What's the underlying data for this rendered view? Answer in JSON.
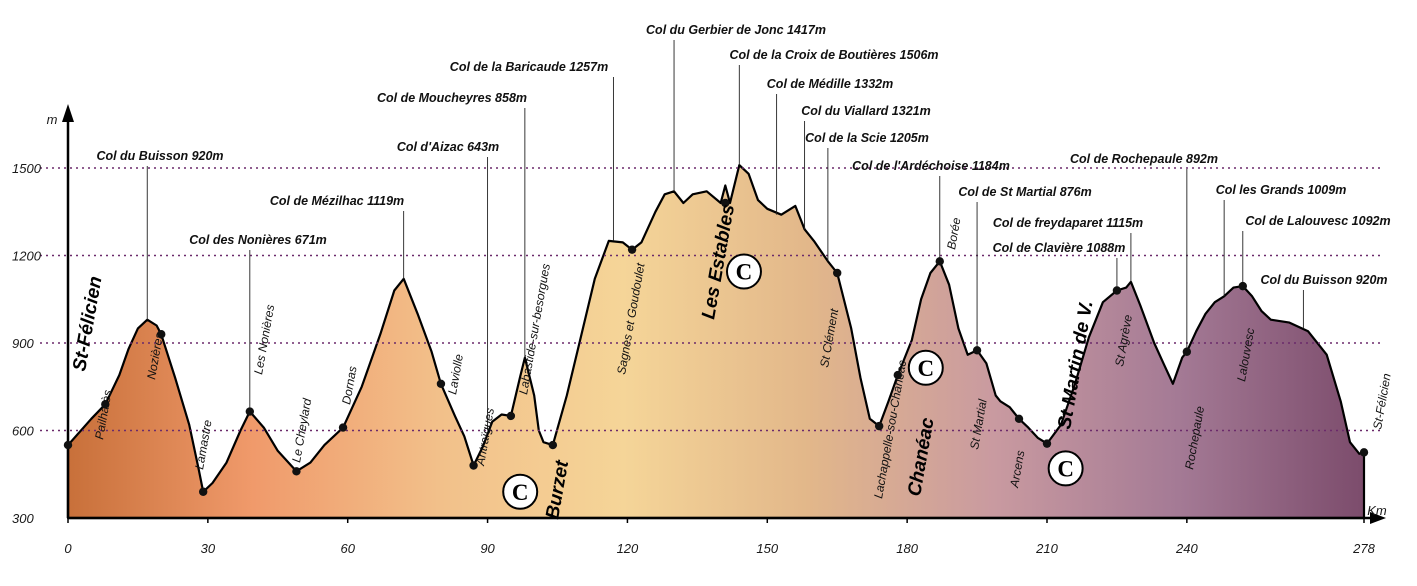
{
  "chart_data": {
    "type": "area",
    "title": "",
    "ylabel": "m",
    "xlabel": "Km",
    "xlim": [
      0,
      278
    ],
    "ylim": [
      300,
      1650
    ],
    "x_ticks": [
      "0",
      "30",
      "60",
      "90",
      "120",
      "150",
      "180",
      "210",
      "240",
      "278"
    ],
    "y_ticks": [
      "300",
      "600",
      "900",
      "1200",
      "1500"
    ],
    "dotted_gridlines": [
      600,
      900,
      1200,
      1500
    ],
    "colors": {
      "gradient": [
        "#c8703a",
        "#f09a6b",
        "#f2c08a",
        "#f5d598",
        "#e2b78a",
        "#c99aa0",
        "#a47a95",
        "#7c4c6c"
      ],
      "gridline": "#6b2a6b",
      "axis": "#000000"
    },
    "profile": [
      [
        0,
        550
      ],
      [
        5,
        640
      ],
      [
        8,
        690
      ],
      [
        11,
        790
      ],
      [
        13,
        880
      ],
      [
        15,
        950
      ],
      [
        17,
        980
      ],
      [
        19,
        960
      ],
      [
        20,
        930
      ],
      [
        23,
        780
      ],
      [
        26,
        620
      ],
      [
        28,
        470
      ],
      [
        29,
        390
      ],
      [
        31,
        420
      ],
      [
        34,
        490
      ],
      [
        37,
        600
      ],
      [
        39,
        665
      ],
      [
        42,
        610
      ],
      [
        45,
        530
      ],
      [
        49,
        460
      ],
      [
        52,
        490
      ],
      [
        55,
        550
      ],
      [
        59,
        610
      ],
      [
        63,
        750
      ],
      [
        67,
        930
      ],
      [
        70,
        1080
      ],
      [
        72,
        1120
      ],
      [
        75,
        1000
      ],
      [
        78,
        870
      ],
      [
        80,
        760
      ],
      [
        83,
        650
      ],
      [
        85,
        580
      ],
      [
        87,
        480
      ],
      [
        89,
        545
      ],
      [
        91,
        630
      ],
      [
        93,
        655
      ],
      [
        95,
        650
      ],
      [
        97,
        785
      ],
      [
        98,
        850
      ],
      [
        100,
        720
      ],
      [
        101,
        600
      ],
      [
        102,
        560
      ],
      [
        104,
        550
      ],
      [
        107,
        720
      ],
      [
        110,
        920
      ],
      [
        113,
        1120
      ],
      [
        116,
        1250
      ],
      [
        119,
        1245
      ],
      [
        121,
        1220
      ],
      [
        123,
        1245
      ],
      [
        126,
        1350
      ],
      [
        128,
        1410
      ],
      [
        130,
        1420
      ],
      [
        132,
        1380
      ],
      [
        134,
        1410
      ],
      [
        137,
        1420
      ],
      [
        140,
        1380
      ],
      [
        141,
        1440
      ],
      [
        142,
        1380
      ],
      [
        144,
        1510
      ],
      [
        146,
        1480
      ],
      [
        148,
        1390
      ],
      [
        150,
        1360
      ],
      [
        153,
        1340
      ],
      [
        156,
        1370
      ],
      [
        158,
        1290
      ],
      [
        160,
        1250
      ],
      [
        163,
        1180
      ],
      [
        165,
        1140
      ],
      [
        168,
        950
      ],
      [
        170,
        780
      ],
      [
        172,
        640
      ],
      [
        174,
        615
      ],
      [
        176,
        700
      ],
      [
        178,
        790
      ],
      [
        181,
        910
      ],
      [
        183,
        1050
      ],
      [
        185,
        1140
      ],
      [
        187,
        1180
      ],
      [
        189,
        1100
      ],
      [
        191,
        950
      ],
      [
        193,
        860
      ],
      [
        195,
        875
      ],
      [
        197,
        830
      ],
      [
        199,
        720
      ],
      [
        200,
        700
      ],
      [
        202,
        680
      ],
      [
        204,
        640
      ],
      [
        206,
        610
      ],
      [
        208,
        575
      ],
      [
        210,
        555
      ],
      [
        213,
        620
      ],
      [
        216,
        760
      ],
      [
        219,
        920
      ],
      [
        222,
        1040
      ],
      [
        225,
        1080
      ],
      [
        227,
        1090
      ],
      [
        228,
        1110
      ],
      [
        230,
        1030
      ],
      [
        233,
        900
      ],
      [
        235,
        830
      ],
      [
        237,
        760
      ],
      [
        239,
        850
      ],
      [
        240,
        870
      ],
      [
        242,
        940
      ],
      [
        244,
        1000
      ],
      [
        246,
        1040
      ],
      [
        248,
        1060
      ],
      [
        250,
        1090
      ],
      [
        252,
        1095
      ],
      [
        254,
        1060
      ],
      [
        256,
        1010
      ],
      [
        258,
        980
      ],
      [
        262,
        970
      ],
      [
        266,
        940
      ],
      [
        270,
        860
      ],
      [
        273,
        700
      ],
      [
        275,
        560
      ],
      [
        277,
        520
      ],
      [
        278,
        525
      ]
    ],
    "cols": [
      {
        "label": "Col du Buisson 920m",
        "x": 17,
        "y": 980
      },
      {
        "label": "Col des Nonières 671m",
        "x": 39,
        "y": 665
      },
      {
        "label": "Col de Mézilhac 1119m",
        "x": 72,
        "y": 1120
      },
      {
        "label": "Col d'Aizac 643m",
        "x": 90,
        "y": 600
      },
      {
        "label": "Col de Moucheyres 858m",
        "x": 98,
        "y": 850
      },
      {
        "label": "Col de la Baricaude 1257m",
        "x": 117,
        "y": 1250
      },
      {
        "label": "Col du Gerbier de Jonc 1417m",
        "x": 130,
        "y": 1420
      },
      {
        "label": "Col de la Croix de Boutières 1506m",
        "x": 144,
        "y": 1510
      },
      {
        "label": "Col de Médille 1332m",
        "x": 152,
        "y": 1340
      },
      {
        "label": "Col du Viallard 1321m",
        "x": 158,
        "y": 1290
      },
      {
        "label": "Col de la Scie 1205m",
        "x": 163,
        "y": 1180
      },
      {
        "label": "Col de l'Ardéchoise 1184m",
        "x": 187,
        "y": 1180
      },
      {
        "label": "Col de St Martial 876m",
        "x": 195,
        "y": 875
      },
      {
        "label": "Col de freydaparet 1115m",
        "x": 228,
        "y": 1110
      },
      {
        "label": "Col de Clavière 1088m",
        "x": 225,
        "y": 1080
      },
      {
        "label": "Col de Rochepaule 892m",
        "x": 240,
        "y": 870
      },
      {
        "label": "Col les Grands 1009m",
        "x": 248,
        "y": 1060
      },
      {
        "label": "Col de Lalouvesc 1092m",
        "x": 252,
        "y": 1095
      },
      {
        "label": "Col du Buisson 920m",
        "x": 265,
        "y": 950
      }
    ],
    "towns": [
      {
        "label": "St-Félicien",
        "x": 0,
        "y": 550
      },
      {
        "label": "Pailharès",
        "x": 8,
        "y": 690
      },
      {
        "label": "Nozières",
        "x": 20,
        "y": 930
      },
      {
        "label": "Lamastre",
        "x": 29,
        "y": 390
      },
      {
        "label": "Les Nonières",
        "x": 39,
        "y": 665
      },
      {
        "label": "Le Cheylard",
        "x": 49,
        "y": 460
      },
      {
        "label": "Dornas",
        "x": 59,
        "y": 610
      },
      {
        "label": "Laviolle",
        "x": 80,
        "y": 760
      },
      {
        "label": "Antraïgues",
        "x": 87,
        "y": 480
      },
      {
        "label": "Labastide-sur-besorgues",
        "x": 95,
        "y": 650
      },
      {
        "label": "Burzet",
        "x": 104,
        "y": 550
      },
      {
        "label": "Sagnes et Goudoulet",
        "x": 121,
        "y": 1220
      },
      {
        "label": "Les Estables",
        "x": 141,
        "y": 1380
      },
      {
        "label": "St Clément",
        "x": 165,
        "y": 1140
      },
      {
        "label": "Lachappelle-sou-Chanéac",
        "x": 174,
        "y": 615
      },
      {
        "label": "Chanéac",
        "x": 178,
        "y": 790
      },
      {
        "label": "Borée",
        "x": 187,
        "y": 1180
      },
      {
        "label": "St Martial",
        "x": 195,
        "y": 875
      },
      {
        "label": "Arcens",
        "x": 204,
        "y": 640
      },
      {
        "label": "St Martin de V.",
        "x": 210,
        "y": 555
      },
      {
        "label": "St Agrève",
        "x": 225,
        "y": 1080
      },
      {
        "label": "Rochepaule",
        "x": 240,
        "y": 870
      },
      {
        "label": "Lalouvesc",
        "x": 252,
        "y": 1095
      },
      {
        "label": "St-Félicien",
        "x": 278,
        "y": 525
      }
    ],
    "campsites": [
      {
        "label": "C",
        "x": 97,
        "y": 390
      },
      {
        "label": "C",
        "x": 145,
        "y": 1145
      },
      {
        "label": "C",
        "x": 184,
        "y": 815
      },
      {
        "label": "C",
        "x": 214,
        "y": 470
      }
    ]
  }
}
